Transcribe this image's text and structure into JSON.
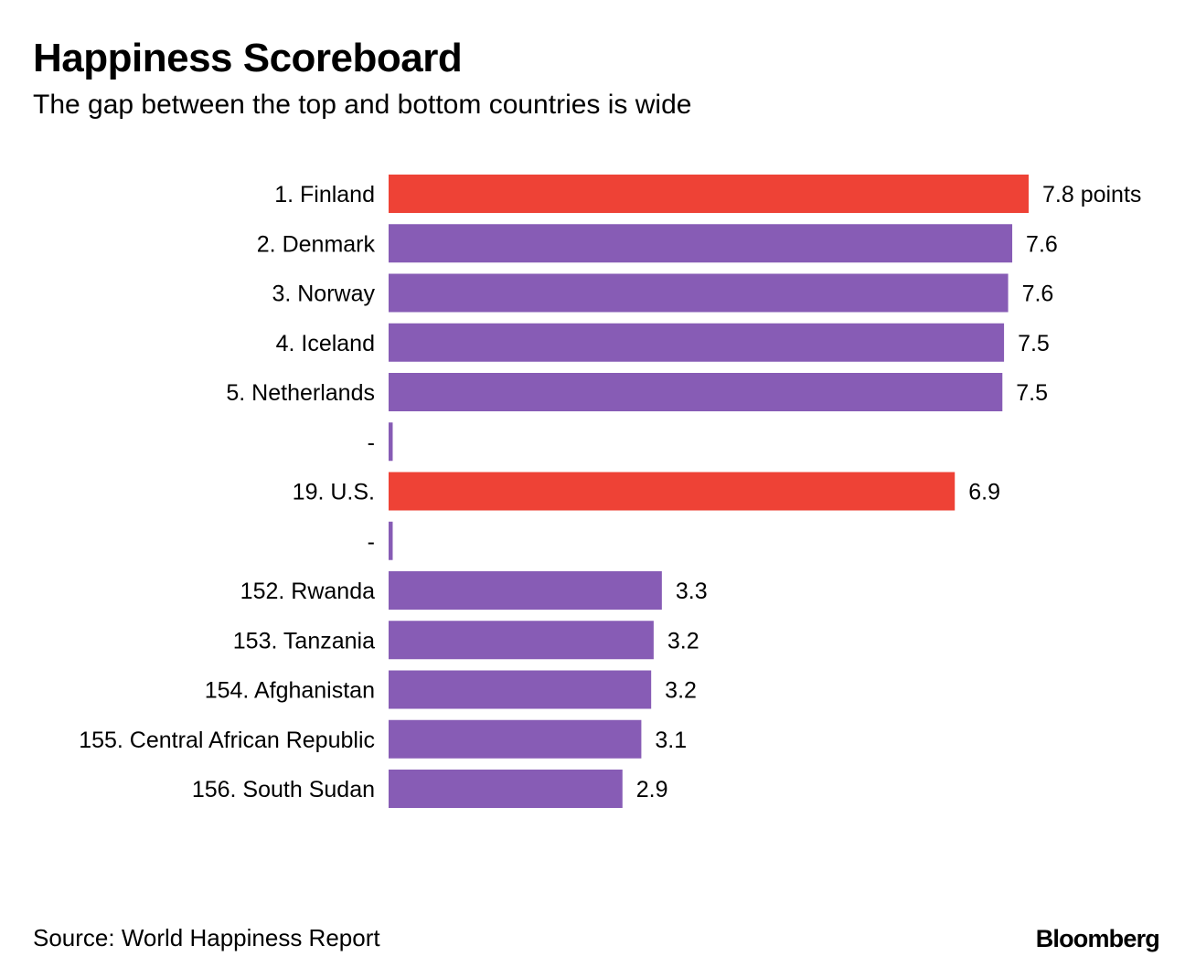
{
  "chart_data": {
    "type": "bar",
    "orientation": "horizontal",
    "title": "Happiness Scoreboard",
    "subtitle": "The gap between the top and bottom countries is wide",
    "value_suffix_first": " points",
    "xlim": [
      0,
      8.5
    ],
    "bars": [
      {
        "label": "1. Finland",
        "value": 7.8,
        "display": "7.8 points",
        "highlight": true
      },
      {
        "label": "2. Denmark",
        "value": 7.6,
        "display": "7.6",
        "highlight": false
      },
      {
        "label": "3. Norway",
        "value": 7.55,
        "display": "7.6",
        "highlight": false
      },
      {
        "label": "4. Iceland",
        "value": 7.5,
        "display": "7.5",
        "highlight": false
      },
      {
        "label": "5. Netherlands",
        "value": 7.48,
        "display": "7.5",
        "highlight": false
      },
      {
        "label": "-",
        "value": 0.05,
        "display": "",
        "highlight": false
      },
      {
        "label": "19. U.S.",
        "value": 6.9,
        "display": "6.9",
        "highlight": true
      },
      {
        "label": "-",
        "value": 0.05,
        "display": "",
        "highlight": false
      },
      {
        "label": "152. Rwanda",
        "value": 3.33,
        "display": "3.3",
        "highlight": false
      },
      {
        "label": "153. Tanzania",
        "value": 3.23,
        "display": "3.2",
        "highlight": false
      },
      {
        "label": "154. Afghanistan",
        "value": 3.2,
        "display": "3.2",
        "highlight": false
      },
      {
        "label": "155. Central African Republic",
        "value": 3.08,
        "display": "3.1",
        "highlight": false
      },
      {
        "label": "156. South Sudan",
        "value": 2.85,
        "display": "2.9",
        "highlight": false
      }
    ]
  },
  "colors": {
    "highlight": "#ee4236",
    "default": "#875cb5"
  },
  "footer": {
    "source": "Source: World Happiness Report",
    "brand": "Bloomberg"
  }
}
